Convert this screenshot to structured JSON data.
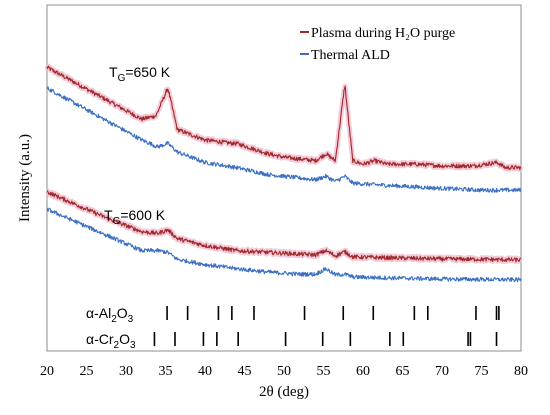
{
  "chart_data": {
    "type": "line",
    "xlabel": "2θ (deg)",
    "ylabel": "Intensity (a.u.)",
    "xlim": [
      20,
      80
    ],
    "xticks": [
      20,
      25,
      30,
      35,
      40,
      45,
      50,
      55,
      60,
      65,
      70,
      75,
      80
    ],
    "grid": false,
    "legend": {
      "placement": "top-right",
      "entries": [
        {
          "label": "Plasma during H₂O purge",
          "color": "#9e2a2b"
        },
        {
          "label": "Thermal ALD",
          "color": "#3a6fc4"
        }
      ]
    },
    "annotations": [
      {
        "main": "T",
        "sub": "G",
        "suffix": "=650 K"
      },
      {
        "main": "T",
        "sub": "G",
        "suffix": "=600 K"
      }
    ],
    "series": [
      {
        "name": "Plasma during H₂O purge",
        "group": "TG=650 K",
        "color": "#9e2a2b",
        "shade": "#f0b8cc",
        "points": [
          [
            20.0,
            0.82
          ],
          [
            24.0,
            0.77
          ],
          [
            28.0,
            0.72
          ],
          [
            32.0,
            0.67
          ],
          [
            33.8,
            0.68
          ],
          [
            35.3,
            0.76
          ],
          [
            36.5,
            0.64
          ],
          [
            40.0,
            0.61
          ],
          [
            43.5,
            0.6
          ],
          [
            44.0,
            0.6
          ],
          [
            48.0,
            0.57
          ],
          [
            50.0,
            0.56
          ],
          [
            54.0,
            0.55
          ],
          [
            55.3,
            0.57
          ],
          [
            56.5,
            0.55
          ],
          [
            57.7,
            0.77
          ],
          [
            58.7,
            0.55
          ],
          [
            60.0,
            0.54
          ],
          [
            61.5,
            0.55
          ],
          [
            63.0,
            0.54
          ],
          [
            66.8,
            0.54
          ],
          [
            70.0,
            0.535
          ],
          [
            74.0,
            0.535
          ],
          [
            77.0,
            0.545
          ],
          [
            78.0,
            0.53
          ],
          [
            80.0,
            0.53
          ]
        ]
      },
      {
        "name": "Thermal ALD",
        "group": "TG=650 K",
        "color": "#3a6fc4",
        "points": [
          [
            20.0,
            0.76
          ],
          [
            24.0,
            0.71
          ],
          [
            28.0,
            0.66
          ],
          [
            32.0,
            0.61
          ],
          [
            34.0,
            0.59
          ],
          [
            35.3,
            0.6
          ],
          [
            36.5,
            0.575
          ],
          [
            40.0,
            0.545
          ],
          [
            44.0,
            0.53
          ],
          [
            48.0,
            0.51
          ],
          [
            52.0,
            0.5
          ],
          [
            54.0,
            0.495
          ],
          [
            55.3,
            0.505
          ],
          [
            56.5,
            0.49
          ],
          [
            57.7,
            0.505
          ],
          [
            58.7,
            0.485
          ],
          [
            62.0,
            0.48
          ],
          [
            66.0,
            0.475
          ],
          [
            70.0,
            0.47
          ],
          [
            75.0,
            0.465
          ],
          [
            80.0,
            0.465
          ]
        ]
      },
      {
        "name": "Plasma during H₂O purge",
        "group": "TG=600 K",
        "color": "#9e2a2b",
        "shade": "#f0b8cc",
        "points": [
          [
            20.0,
            0.46
          ],
          [
            24.0,
            0.42
          ],
          [
            28.0,
            0.38
          ],
          [
            32.0,
            0.345
          ],
          [
            34.0,
            0.34
          ],
          [
            35.3,
            0.35
          ],
          [
            36.5,
            0.325
          ],
          [
            40.0,
            0.305
          ],
          [
            44.0,
            0.29
          ],
          [
            48.0,
            0.285
          ],
          [
            52.0,
            0.28
          ],
          [
            54.0,
            0.278
          ],
          [
            55.3,
            0.29
          ],
          [
            56.5,
            0.275
          ],
          [
            57.7,
            0.287
          ],
          [
            58.7,
            0.272
          ],
          [
            62.0,
            0.27
          ],
          [
            66.0,
            0.268
          ],
          [
            70.0,
            0.266
          ],
          [
            75.0,
            0.265
          ],
          [
            80.0,
            0.263
          ]
        ]
      },
      {
        "name": "Thermal ALD",
        "group": "TG=600 K",
        "color": "#3a6fc4",
        "points": [
          [
            20.0,
            0.41
          ],
          [
            24.0,
            0.37
          ],
          [
            28.0,
            0.33
          ],
          [
            32.0,
            0.29
          ],
          [
            34.0,
            0.29
          ],
          [
            35.3,
            0.285
          ],
          [
            36.5,
            0.265
          ],
          [
            40.0,
            0.25
          ],
          [
            44.0,
            0.238
          ],
          [
            48.0,
            0.228
          ],
          [
            52.0,
            0.222
          ],
          [
            54.0,
            0.222
          ],
          [
            55.3,
            0.238
          ],
          [
            56.5,
            0.22
          ],
          [
            57.7,
            0.222
          ],
          [
            58.7,
            0.214
          ],
          [
            62.0,
            0.212
          ],
          [
            66.0,
            0.21
          ],
          [
            70.0,
            0.208
          ],
          [
            75.0,
            0.207
          ],
          [
            80.0,
            0.206
          ]
        ]
      }
    ],
    "reference_patterns": [
      {
        "main": "α-Al",
        "sub1": "2",
        "mid": "O",
        "sub2": "3",
        "positions": [
          35.2,
          37.8,
          41.7,
          43.4,
          46.2,
          52.6,
          57.5,
          61.3,
          66.5,
          68.2,
          74.3,
          76.9,
          77.2
        ]
      },
      {
        "main": "α-Cr",
        "sub1": "2",
        "mid": "O",
        "sub2": "3",
        "positions": [
          33.6,
          36.2,
          39.8,
          41.5,
          44.2,
          50.2,
          54.9,
          58.4,
          63.4,
          65.1,
          73.3,
          73.6,
          76.9
        ]
      }
    ]
  }
}
